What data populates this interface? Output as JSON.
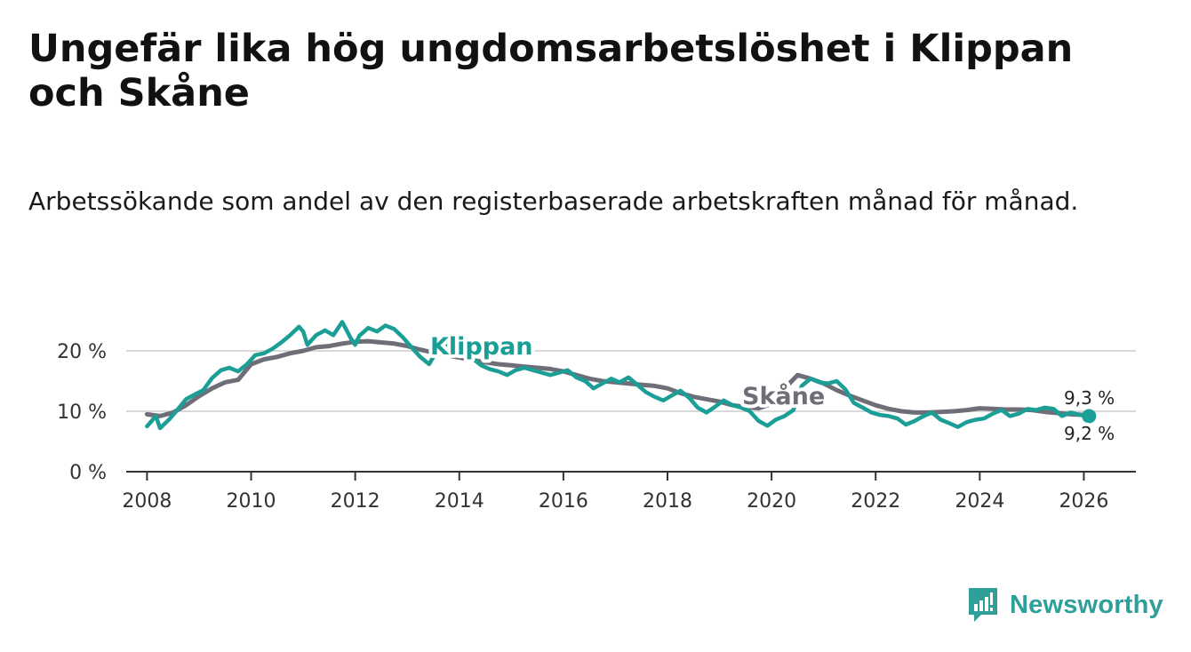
{
  "title": "Ungefär lika hög ungdomsarbetslöshet i Klippan och Skåne",
  "subtitle": "Arbetssökande som andel av den registerbaserade arbetskraften månad för månad.",
  "brand": "Newsworthy",
  "colors": {
    "klippan": "#1a9e96",
    "skane": "#6e6e78",
    "grid": "#d9d9d9",
    "axis": "#333333",
    "brand": "#2e9f99"
  },
  "chart_data": {
    "type": "line",
    "title": "Ungefär lika hög ungdomsarbetslöshet i Klippan och Skåne",
    "xlabel": "",
    "ylabel": "",
    "xlim": [
      2007.6,
      2027.0
    ],
    "ylim": [
      0,
      20
    ],
    "x_ticks": [
      2008,
      2010,
      2012,
      2014,
      2016,
      2018,
      2020,
      2022,
      2024,
      2026
    ],
    "x_tick_labels": [
      "2008",
      "2010",
      "2012",
      "2014",
      "2016",
      "2018",
      "2020",
      "2022",
      "2024",
      "2026"
    ],
    "y_ticks": [
      0,
      10,
      20
    ],
    "y_tick_labels": [
      "0 %",
      "10 %",
      "20 %"
    ],
    "grid": "horizontal",
    "series": [
      {
        "name": "Skåne",
        "label": "Skåne",
        "end_label": "9,3 %",
        "color": "#6e6e78",
        "points": [
          [
            2008.0,
            9.5
          ],
          [
            2008.25,
            9.2
          ],
          [
            2008.5,
            9.8
          ],
          [
            2008.75,
            11.0
          ],
          [
            2009.0,
            12.5
          ],
          [
            2009.25,
            13.8
          ],
          [
            2009.5,
            14.8
          ],
          [
            2009.75,
            15.2
          ],
          [
            2010.0,
            17.8
          ],
          [
            2010.25,
            18.6
          ],
          [
            2010.5,
            19.0
          ],
          [
            2010.75,
            19.6
          ],
          [
            2011.0,
            20.0
          ],
          [
            2011.25,
            20.6
          ],
          [
            2011.5,
            20.8
          ],
          [
            2011.75,
            21.2
          ],
          [
            2012.0,
            21.5
          ],
          [
            2012.25,
            21.6
          ],
          [
            2012.5,
            21.4
          ],
          [
            2012.75,
            21.2
          ],
          [
            2013.0,
            20.8
          ],
          [
            2013.25,
            20.2
          ],
          [
            2013.5,
            19.7
          ],
          [
            2013.75,
            19.3
          ],
          [
            2014.0,
            18.9
          ],
          [
            2014.25,
            18.5
          ],
          [
            2014.5,
            18.1
          ],
          [
            2014.75,
            17.8
          ],
          [
            2015.0,
            17.6
          ],
          [
            2015.25,
            17.4
          ],
          [
            2015.5,
            17.2
          ],
          [
            2015.75,
            17.0
          ],
          [
            2016.0,
            16.6
          ],
          [
            2016.25,
            16.0
          ],
          [
            2016.5,
            15.4
          ],
          [
            2016.75,
            15.0
          ],
          [
            2017.0,
            14.8
          ],
          [
            2017.25,
            14.6
          ],
          [
            2017.5,
            14.4
          ],
          [
            2017.75,
            14.2
          ],
          [
            2018.0,
            13.8
          ],
          [
            2018.25,
            13.0
          ],
          [
            2018.5,
            12.4
          ],
          [
            2018.75,
            12.0
          ],
          [
            2019.0,
            11.6
          ],
          [
            2019.25,
            11.0
          ],
          [
            2019.5,
            10.7
          ],
          [
            2019.75,
            10.5
          ],
          [
            2020.0,
            11.2
          ],
          [
            2020.25,
            13.8
          ],
          [
            2020.5,
            16.0
          ],
          [
            2020.75,
            15.4
          ],
          [
            2021.0,
            14.6
          ],
          [
            2021.25,
            13.5
          ],
          [
            2021.5,
            12.6
          ],
          [
            2021.75,
            11.8
          ],
          [
            2022.0,
            11.0
          ],
          [
            2022.25,
            10.4
          ],
          [
            2022.5,
            10.0
          ],
          [
            2022.75,
            9.8
          ],
          [
            2023.0,
            9.8
          ],
          [
            2023.25,
            9.9
          ],
          [
            2023.5,
            10.0
          ],
          [
            2023.75,
            10.2
          ],
          [
            2024.0,
            10.5
          ],
          [
            2024.25,
            10.4
          ],
          [
            2024.5,
            10.3
          ],
          [
            2024.75,
            10.3
          ],
          [
            2025.0,
            10.2
          ],
          [
            2025.25,
            9.9
          ],
          [
            2025.5,
            9.7
          ],
          [
            2025.75,
            9.5
          ],
          [
            2026.0,
            9.4
          ],
          [
            2026.1,
            9.3
          ]
        ]
      },
      {
        "name": "Klippan",
        "label": "Klippan",
        "end_label": "9,2 %",
        "color": "#1a9e96",
        "points": [
          [
            2008.0,
            7.5
          ],
          [
            2008.17,
            9.2
          ],
          [
            2008.25,
            7.2
          ],
          [
            2008.42,
            8.6
          ],
          [
            2008.58,
            10.2
          ],
          [
            2008.75,
            12.0
          ],
          [
            2008.92,
            12.8
          ],
          [
            2009.08,
            13.5
          ],
          [
            2009.25,
            15.5
          ],
          [
            2009.42,
            16.8
          ],
          [
            2009.58,
            17.2
          ],
          [
            2009.75,
            16.6
          ],
          [
            2009.92,
            17.8
          ],
          [
            2010.08,
            19.3
          ],
          [
            2010.25,
            19.6
          ],
          [
            2010.42,
            20.4
          ],
          [
            2010.58,
            21.4
          ],
          [
            2010.75,
            22.6
          ],
          [
            2010.92,
            24.0
          ],
          [
            2011.0,
            23.2
          ],
          [
            2011.08,
            21.0
          ],
          [
            2011.25,
            22.6
          ],
          [
            2011.42,
            23.4
          ],
          [
            2011.58,
            22.6
          ],
          [
            2011.75,
            24.8
          ],
          [
            2011.92,
            22.0
          ],
          [
            2012.0,
            21.0
          ],
          [
            2012.08,
            22.5
          ],
          [
            2012.25,
            23.8
          ],
          [
            2012.42,
            23.2
          ],
          [
            2012.58,
            24.2
          ],
          [
            2012.75,
            23.6
          ],
          [
            2012.92,
            22.2
          ],
          [
            2013.08,
            20.6
          ],
          [
            2013.25,
            19.0
          ],
          [
            2013.42,
            17.8
          ],
          [
            2013.58,
            20.2
          ],
          [
            2013.75,
            21.0
          ],
          [
            2013.92,
            20.4
          ],
          [
            2014.08,
            19.6
          ],
          [
            2014.25,
            18.8
          ],
          [
            2014.42,
            17.6
          ],
          [
            2014.58,
            17.0
          ],
          [
            2014.75,
            16.6
          ],
          [
            2014.92,
            16.0
          ],
          [
            2015.08,
            16.8
          ],
          [
            2015.25,
            17.2
          ],
          [
            2015.42,
            16.8
          ],
          [
            2015.58,
            16.4
          ],
          [
            2015.75,
            16.0
          ],
          [
            2015.92,
            16.4
          ],
          [
            2016.08,
            16.8
          ],
          [
            2016.25,
            15.6
          ],
          [
            2016.42,
            15.0
          ],
          [
            2016.58,
            13.8
          ],
          [
            2016.75,
            14.6
          ],
          [
            2016.92,
            15.4
          ],
          [
            2017.08,
            14.8
          ],
          [
            2017.25,
            15.6
          ],
          [
            2017.42,
            14.4
          ],
          [
            2017.58,
            13.2
          ],
          [
            2017.75,
            12.4
          ],
          [
            2017.92,
            11.8
          ],
          [
            2018.08,
            12.6
          ],
          [
            2018.25,
            13.4
          ],
          [
            2018.42,
            12.2
          ],
          [
            2018.58,
            10.6
          ],
          [
            2018.75,
            9.8
          ],
          [
            2018.92,
            10.8
          ],
          [
            2019.08,
            11.8
          ],
          [
            2019.25,
            11.0
          ],
          [
            2019.42,
            10.6
          ],
          [
            2019.58,
            10.0
          ],
          [
            2019.75,
            8.4
          ],
          [
            2019.92,
            7.6
          ],
          [
            2020.08,
            8.6
          ],
          [
            2020.25,
            9.2
          ],
          [
            2020.42,
            10.2
          ],
          [
            2020.58,
            14.2
          ],
          [
            2020.75,
            15.4
          ],
          [
            2020.92,
            14.8
          ],
          [
            2021.08,
            14.6
          ],
          [
            2021.25,
            15.0
          ],
          [
            2021.42,
            13.6
          ],
          [
            2021.58,
            11.4
          ],
          [
            2021.75,
            10.6
          ],
          [
            2021.92,
            9.8
          ],
          [
            2022.08,
            9.4
          ],
          [
            2022.25,
            9.2
          ],
          [
            2022.42,
            8.8
          ],
          [
            2022.58,
            7.8
          ],
          [
            2022.75,
            8.4
          ],
          [
            2022.92,
            9.2
          ],
          [
            2023.08,
            9.8
          ],
          [
            2023.25,
            8.6
          ],
          [
            2023.42,
            8.0
          ],
          [
            2023.58,
            7.4
          ],
          [
            2023.75,
            8.2
          ],
          [
            2023.92,
            8.6
          ],
          [
            2024.08,
            8.8
          ],
          [
            2024.25,
            9.6
          ],
          [
            2024.42,
            10.2
          ],
          [
            2024.58,
            9.2
          ],
          [
            2024.75,
            9.6
          ],
          [
            2024.92,
            10.4
          ],
          [
            2025.08,
            10.2
          ],
          [
            2025.25,
            10.6
          ],
          [
            2025.42,
            10.4
          ],
          [
            2025.58,
            9.2
          ],
          [
            2025.75,
            9.8
          ],
          [
            2025.92,
            9.4
          ],
          [
            2026.1,
            9.2
          ]
        ]
      }
    ]
  }
}
